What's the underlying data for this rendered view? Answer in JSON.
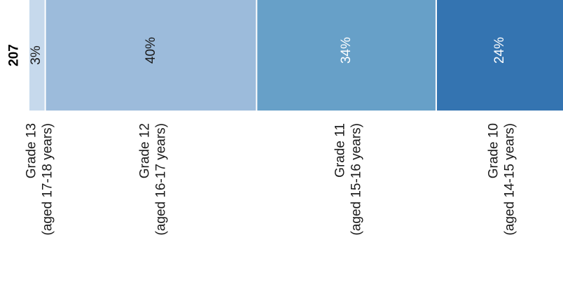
{
  "chart_data": {
    "type": "bar",
    "orientation": "stacked-100",
    "total": "207",
    "segments": [
      {
        "line1": "Grade 13",
        "line2": "(aged 17-18 years)",
        "value": 3,
        "label": "3%",
        "color": "#c6d9ec",
        "text_color": "#1a1a1a"
      },
      {
        "line1": "Grade 12",
        "line2": "(aged 16-17 years)",
        "value": 40,
        "label": "40%",
        "color": "#9cbbdb",
        "text_color": "#1a1a1a"
      },
      {
        "line1": "Grade 11",
        "line2": "(aged 15-16 years)",
        "value": 34,
        "label": "34%",
        "color": "#67a0c8",
        "text_color": "#ffffff"
      },
      {
        "line1": "Grade 10",
        "line2": "(aged 14-15 years)",
        "value": 24,
        "label": "24%",
        "color": "#3474b1",
        "text_color": "#ffffff"
      }
    ],
    "xlabel": "",
    "ylabel": "",
    "title": ""
  }
}
